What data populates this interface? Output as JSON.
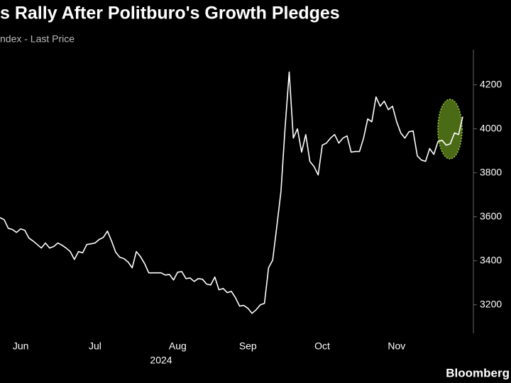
{
  "chart_data": {
    "type": "line",
    "title": "s Rally After Politburo's Growth Pledges",
    "subtitle": "ndex - Last Price",
    "year_label": "2024",
    "source": "Bloomberg",
    "categories": [
      null,
      null,
      null,
      null,
      null,
      "Jun",
      null,
      null,
      null,
      null,
      null,
      null,
      null,
      null,
      null,
      null,
      null,
      null,
      null,
      null,
      null,
      null,
      null,
      "Jul",
      null,
      null,
      null,
      null,
      null,
      null,
      null,
      null,
      null,
      null,
      null,
      null,
      null,
      null,
      null,
      null,
      null,
      null,
      null,
      "Aug",
      null,
      null,
      null,
      null,
      null,
      null,
      null,
      null,
      null,
      null,
      null,
      null,
      null,
      null,
      null,
      null,
      "Sep",
      null,
      null,
      null,
      null,
      null,
      null,
      null,
      null,
      null,
      null,
      null,
      null,
      null,
      null,
      null,
      null,
      null,
      "Oct",
      null,
      null,
      null,
      null,
      null,
      null,
      null,
      null,
      null,
      null,
      null,
      null,
      null,
      null,
      null,
      null,
      null,
      "Nov",
      null,
      null,
      null,
      null,
      null,
      null,
      null,
      null,
      null,
      null,
      null,
      null,
      null,
      null,
      null,
      null
    ],
    "series": [
      {
        "name": "Last Price",
        "color": "#ffffff",
        "values": [
          3596,
          3587,
          3548,
          3542,
          3529,
          3545,
          3539,
          3503,
          3490,
          3474,
          3458,
          3481,
          3458,
          3465,
          3481,
          3471,
          3458,
          3442,
          3406,
          3442,
          3436,
          3474,
          3477,
          3481,
          3497,
          3506,
          3535,
          3490,
          3439,
          3416,
          3410,
          3394,
          3368,
          3442,
          3419,
          3387,
          3345,
          3345,
          3345,
          3345,
          3335,
          3338,
          3313,
          3348,
          3351,
          3319,
          3322,
          3306,
          3319,
          3316,
          3294,
          3290,
          3326,
          3268,
          3274,
          3255,
          3261,
          3232,
          3194,
          3197,
          3184,
          3161,
          3177,
          3200,
          3206,
          3368,
          3403,
          3555,
          3716,
          4006,
          4258,
          3958,
          4000,
          3894,
          3974,
          3852,
          3829,
          3790,
          3926,
          3935,
          3958,
          3974,
          3935,
          3958,
          3968,
          3894,
          3897,
          3897,
          3958,
          4045,
          4032,
          4145,
          4103,
          4126,
          4087,
          4103,
          4032,
          3981,
          3958,
          3987,
          3990,
          3877,
          3858,
          3852,
          3910,
          3884,
          3942,
          3948,
          3926,
          3932,
          3981,
          3974,
          4055
        ]
      }
    ],
    "ylim": [
      3070,
      4360
    ],
    "yticks": [
      3200,
      3400,
      3600,
      3800,
      4000,
      4200
    ],
    "grid": false
  }
}
